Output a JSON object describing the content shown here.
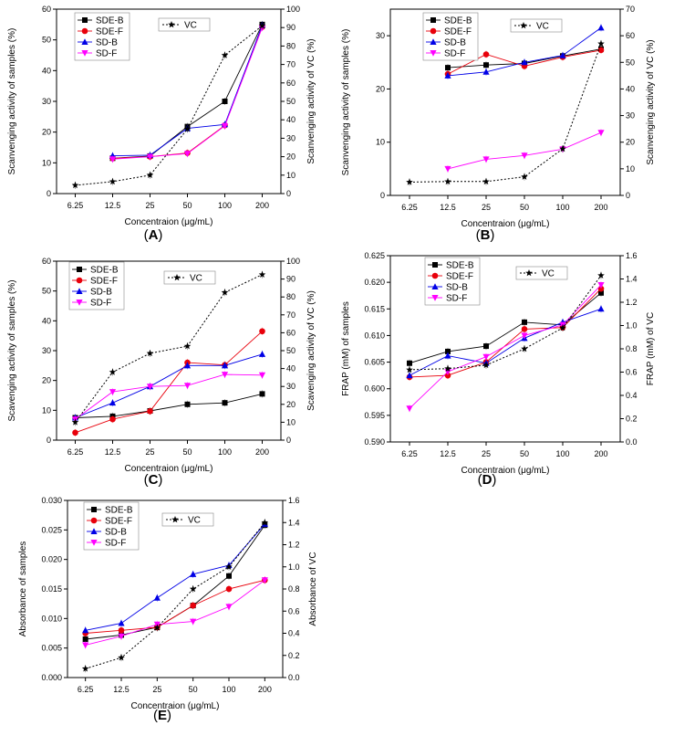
{
  "colors": {
    "SDE-B": "#000000",
    "SDE-F": "#e8000b",
    "SD-B": "#0000e6",
    "SD-F": "#ff00ff",
    "VC": "#000000"
  },
  "chart_data": [
    {
      "type": "line",
      "panel_label": "(A)",
      "categories": [
        "6.25",
        "12.5",
        "25",
        "50",
        "100",
        "200"
      ],
      "xlabel": "Concentraion (μg/mL)",
      "ylabel": "Scanvenging activity of samples (%)",
      "y2label": "Scanvenging activity of VC (%)",
      "ylim": [
        0,
        60
      ],
      "yticks": [
        0,
        10,
        20,
        30,
        40,
        50,
        60
      ],
      "y2lim": [
        0,
        100
      ],
      "y2ticks": [
        0,
        10,
        20,
        30,
        40,
        50,
        60,
        70,
        80,
        90,
        100
      ],
      "series": [
        {
          "name": "SDE-B",
          "values": [
            null,
            11.5,
            12.2,
            21.8,
            30.0,
            55.0
          ]
        },
        {
          "name": "SDE-F",
          "values": [
            null,
            11.5,
            12.0,
            13.2,
            22.2,
            54.2
          ]
        },
        {
          "name": "SD-B",
          "values": [
            null,
            12.3,
            12.5,
            21.2,
            22.5,
            54.8
          ]
        },
        {
          "name": "SD-F",
          "values": [
            null,
            11.2,
            12.0,
            13.0,
            22.0,
            54.0
          ]
        },
        {
          "name": "VC",
          "axis": "right",
          "values": [
            4.5,
            6.5,
            10.0,
            35.0,
            75.0,
            91.0
          ]
        }
      ]
    },
    {
      "type": "line",
      "panel_label": "(B)",
      "categories": [
        "6.25",
        "12.5",
        "25",
        "50",
        "100",
        "200"
      ],
      "xlabel": "Concentraion (μg/mL)",
      "ylabel": "Scanvenging activity of samples (%)",
      "y2label": "Scanvenging activity of VC (%)",
      "ylim": [
        0,
        35
      ],
      "yticks": [
        0,
        10,
        20,
        30
      ],
      "y2lim": [
        0,
        70
      ],
      "y2ticks": [
        0,
        10,
        20,
        30,
        40,
        50,
        60,
        70
      ],
      "series": [
        {
          "name": "SDE-B",
          "values": [
            null,
            24.0,
            24.5,
            24.8,
            26.2,
            27.5
          ]
        },
        {
          "name": "SDE-F",
          "values": [
            null,
            22.8,
            26.5,
            24.3,
            26.0,
            27.3
          ]
        },
        {
          "name": "SD-B",
          "values": [
            null,
            22.5,
            23.2,
            25.0,
            26.3,
            31.5
          ]
        },
        {
          "name": "SD-F",
          "values": [
            null,
            5.0,
            6.8,
            7.5,
            8.7,
            11.8
          ]
        },
        {
          "name": "VC",
          "axis": "right",
          "values": [
            5.0,
            5.2,
            5.2,
            7.0,
            17.5,
            57.0
          ]
        }
      ]
    },
    {
      "type": "line",
      "panel_label": "(C)",
      "categories": [
        "6.25",
        "12.5",
        "25",
        "50",
        "100",
        "200"
      ],
      "xlabel": "Concentraion (μg/mL)",
      "ylabel": "Scavenging activity of samples (%)",
      "y2label": "Scavenging activity of VC (%)",
      "ylim": [
        0,
        60
      ],
      "yticks": [
        0,
        10,
        20,
        30,
        40,
        50,
        60
      ],
      "y2lim": [
        0,
        100
      ],
      "y2ticks": [
        0,
        10,
        20,
        30,
        40,
        50,
        60,
        70,
        80,
        90,
        100
      ],
      "series": [
        {
          "name": "SDE-B",
          "values": [
            7.5,
            8.0,
            9.8,
            12.0,
            12.5,
            15.5
          ]
        },
        {
          "name": "SDE-F",
          "values": [
            2.5,
            7.0,
            9.7,
            26.0,
            25.2,
            36.5
          ]
        },
        {
          "name": "SD-B",
          "values": [
            7.5,
            12.5,
            18.0,
            25.0,
            25.0,
            28.8
          ]
        },
        {
          "name": "SD-F",
          "values": [
            7.0,
            16.2,
            18.0,
            18.3,
            22.0,
            21.8
          ]
        },
        {
          "name": "VC",
          "axis": "right",
          "values": [
            10.0,
            38.0,
            48.5,
            52.5,
            82.5,
            92.5
          ]
        }
      ]
    },
    {
      "type": "line",
      "panel_label": "(D)",
      "categories": [
        "6.25",
        "12.5",
        "25",
        "50",
        "100",
        "200"
      ],
      "xlabel": "Concentraion (μg/mL)",
      "ylabel": "FRAP (mM) of samples",
      "y2label": "FRAP (mM) of VC",
      "ylim": [
        0.59,
        0.625
      ],
      "yticks": [
        0.59,
        0.595,
        0.6,
        0.605,
        0.61,
        0.615,
        0.62,
        0.625
      ],
      "ytick_labels": [
        "0.590",
        "0.595",
        "0.600",
        "0.605",
        "0.610",
        "0.615",
        "0.620",
        "0.625"
      ],
      "y2lim": [
        0,
        1.6
      ],
      "y2ticks": [
        0,
        0.2,
        0.4,
        0.6,
        0.8,
        1.0,
        1.2,
        1.4,
        1.6
      ],
      "y2tick_labels": [
        "0.0",
        "0.2",
        "0.4",
        "0.6",
        "0.8",
        "1.0",
        "1.2",
        "1.4",
        "1.6"
      ],
      "series": [
        {
          "name": "SDE-B",
          "values": [
            0.6048,
            0.607,
            0.608,
            0.6125,
            0.612,
            0.618
          ]
        },
        {
          "name": "SDE-F",
          "values": [
            0.6022,
            0.6025,
            0.605,
            0.6112,
            0.6115,
            0.6188
          ]
        },
        {
          "name": "SD-B",
          "values": [
            0.6025,
            0.6062,
            0.6048,
            0.6095,
            0.6125,
            0.615
          ]
        },
        {
          "name": "SD-F",
          "values": [
            0.5963,
            0.6032,
            0.606,
            0.61,
            0.612,
            0.6195
          ]
        },
        {
          "name": "VC",
          "axis": "right",
          "values": [
            0.62,
            0.63,
            0.66,
            0.8,
            0.98,
            1.43
          ]
        }
      ]
    },
    {
      "type": "line",
      "panel_label": "(E)",
      "categories": [
        "6.25",
        "12.5",
        "25",
        "50",
        "100",
        "200"
      ],
      "xlabel": "Concentraion (μg/mL)",
      "ylabel": "Absorbance of samples",
      "y2label": "Absorbance of VC",
      "ylim": [
        0,
        0.03
      ],
      "yticks": [
        0,
        0.005,
        0.01,
        0.015,
        0.02,
        0.025,
        0.03
      ],
      "ytick_labels": [
        "0.000",
        "0.005",
        "0.010",
        "0.015",
        "0.020",
        "0.025",
        "0.030"
      ],
      "y2lim": [
        0,
        1.6
      ],
      "y2ticks": [
        0,
        0.2,
        0.4,
        0.6,
        0.8,
        1.0,
        1.2,
        1.4,
        1.6
      ],
      "y2tick_labels": [
        "0.0",
        "0.2",
        "0.4",
        "0.6",
        "0.8",
        "1.0",
        "1.2",
        "1.4",
        "1.6"
      ],
      "series": [
        {
          "name": "SDE-B",
          "values": [
            0.0065,
            0.0072,
            0.0085,
            0.0122,
            0.0172,
            0.0258
          ]
        },
        {
          "name": "SDE-F",
          "values": [
            0.0075,
            0.008,
            0.0085,
            0.0122,
            0.015,
            0.0165
          ]
        },
        {
          "name": "SD-B",
          "values": [
            0.008,
            0.0092,
            0.0135,
            0.0175,
            0.019,
            0.026
          ]
        },
        {
          "name": "SD-F",
          "values": [
            0.0055,
            0.007,
            0.009,
            0.0095,
            0.012,
            0.0165
          ]
        },
        {
          "name": "VC",
          "axis": "right",
          "values": [
            0.08,
            0.18,
            0.45,
            0.8,
            1.0,
            1.4
          ]
        }
      ]
    }
  ]
}
